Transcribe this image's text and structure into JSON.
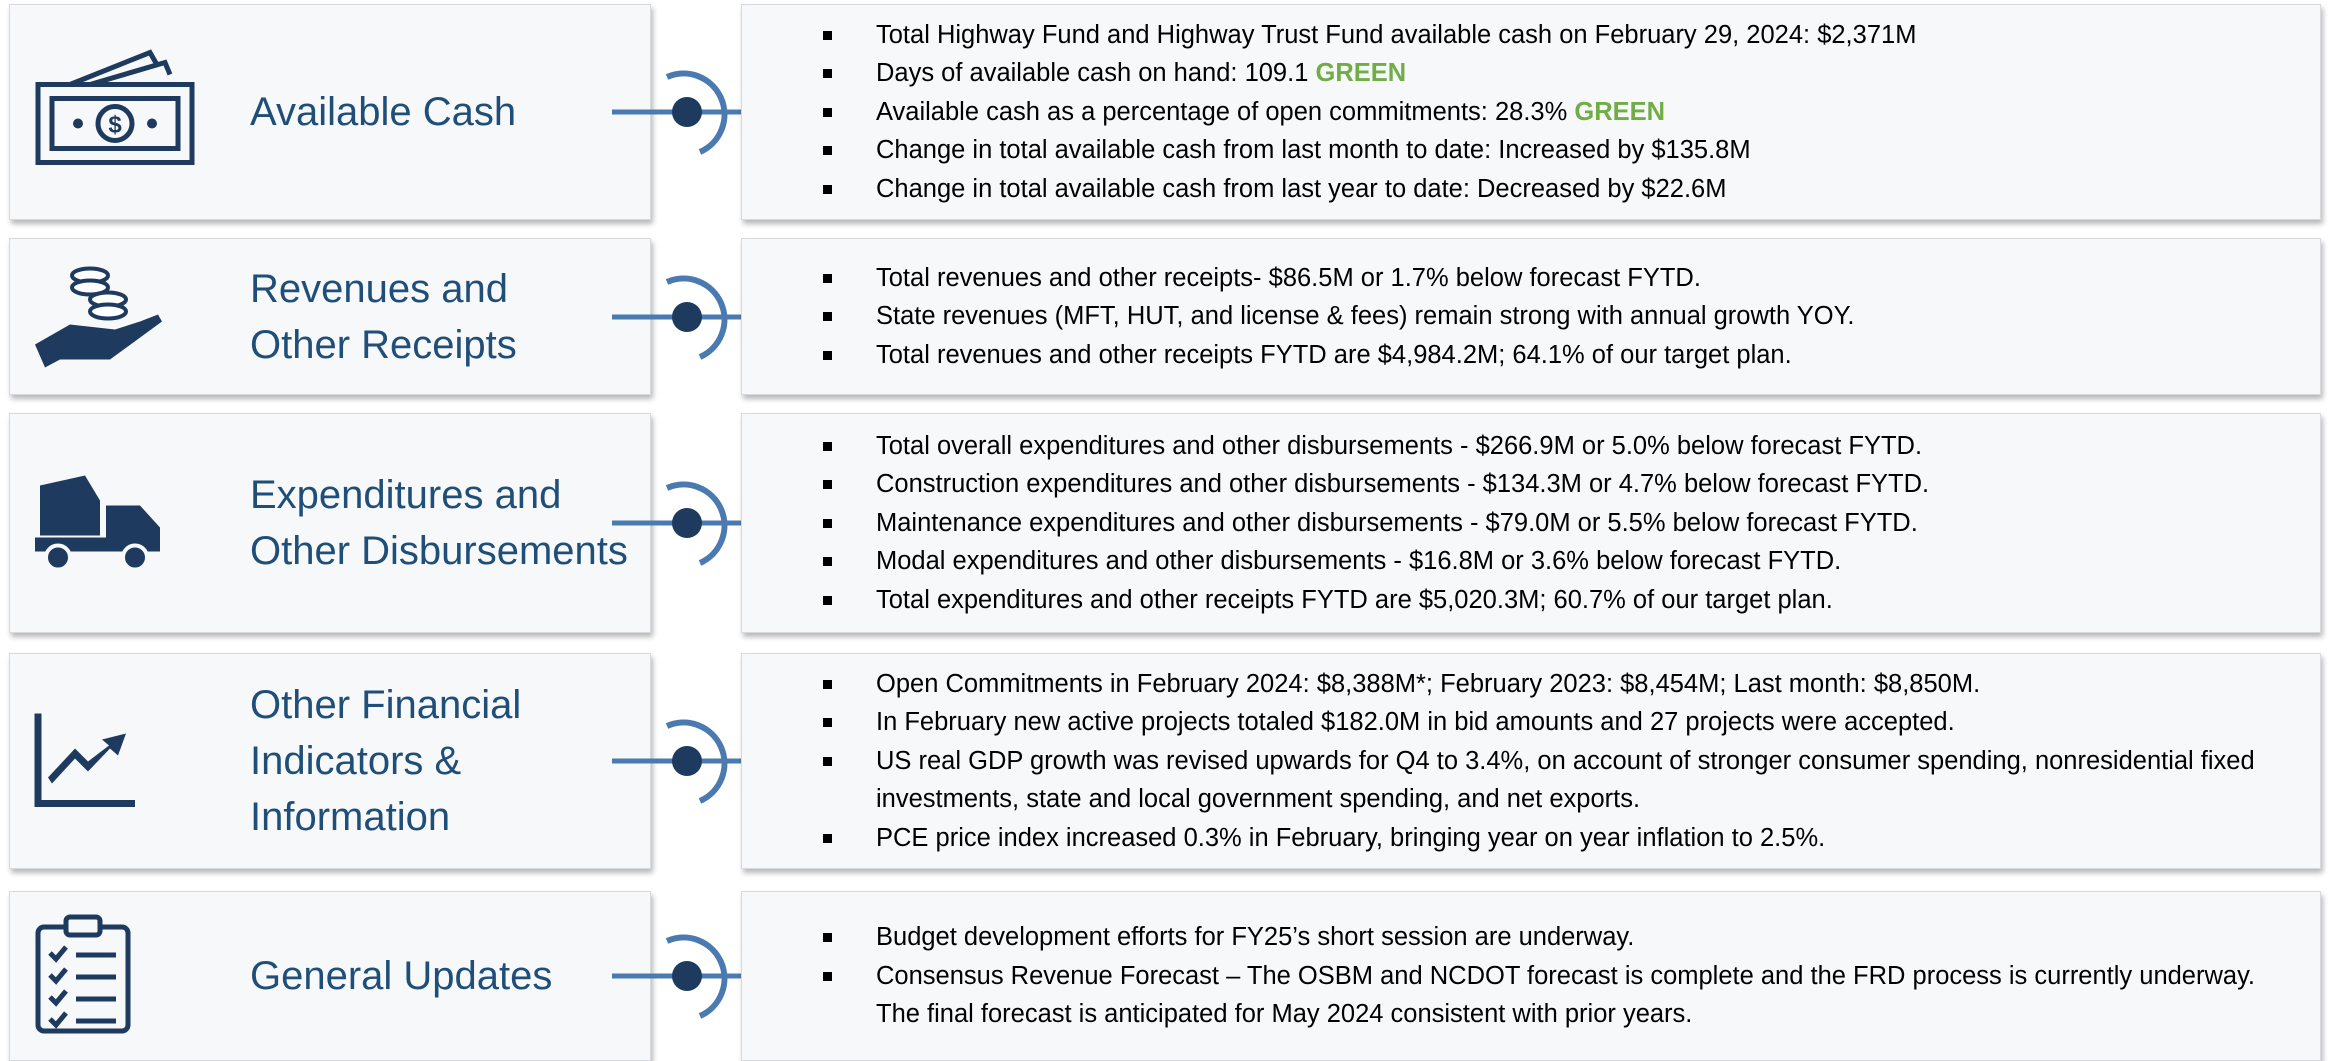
{
  "rows": [
    {
      "title": [
        "Available Cash"
      ],
      "bullets": [
        "Total Highway Fund and Highway Trust Fund available cash on February 29, 2024: $2,371M",
        {
          "text": "Days of available cash on hand: 109.1",
          "status": "GREEN"
        },
        {
          "text": "Available cash as a percentage of open commitments: 28.3%",
          "status": "GREEN"
        },
        "Change in total available cash from last month to date: Increased by $135.8M",
        "Change in total available cash from last year to date: Decreased by $22.6M"
      ]
    },
    {
      "title": [
        "Revenues and",
        "Other Receipts"
      ],
      "bullets": [
        "Total revenues and other receipts- $86.5M or 1.7% below forecast FYTD.",
        "State revenues (MFT, HUT, and license & fees) remain strong with annual growth YOY.",
        "Total revenues and other receipts FYTD are $4,984.2M; 64.1% of our target plan."
      ]
    },
    {
      "title": [
        "Expenditures and",
        "Other Disbursements"
      ],
      "bullets": [
        "Total overall expenditures and other disbursements - $266.9M or 5.0% below forecast FYTD.",
        "Construction expenditures and other disbursements - $134.3M or 4.7% below forecast FYTD.",
        "Maintenance expenditures and other disbursements - $79.0M or 5.5% below forecast FYTD.",
        "Modal expenditures and other disbursements - $16.8M or 3.6% below forecast FYTD.",
        "Total expenditures and other receipts FYTD are $5,020.3M; 60.7% of our target plan."
      ]
    },
    {
      "title": [
        "Other Financial",
        "Indicators &",
        "Information"
      ],
      "bullets": [
        "Open Commitments in February 2024: $8,388M*; February 2023: $8,454M; Last month: $8,850M.",
        "In February new active projects totaled $182.0M in bid amounts and 27 projects were accepted.",
        "US real GDP growth was revised upwards for Q4 to 3.4%, on account of stronger consumer spending, nonresidential fixed investments, state and local government spending, and net exports.",
        "PCE price index increased 0.3% in February, bringing year on year inflation to 2.5%."
      ]
    },
    {
      "title": [
        "General Updates"
      ],
      "bullets": [
        "Budget development efforts for FY25’s short session are underway.",
        "Consensus Revenue Forecast – The OSBM and NCDOT forecast is complete and the FRD process is currently underway. The final forecast is anticipated for May 2024 consistent with prior years."
      ]
    }
  ]
}
